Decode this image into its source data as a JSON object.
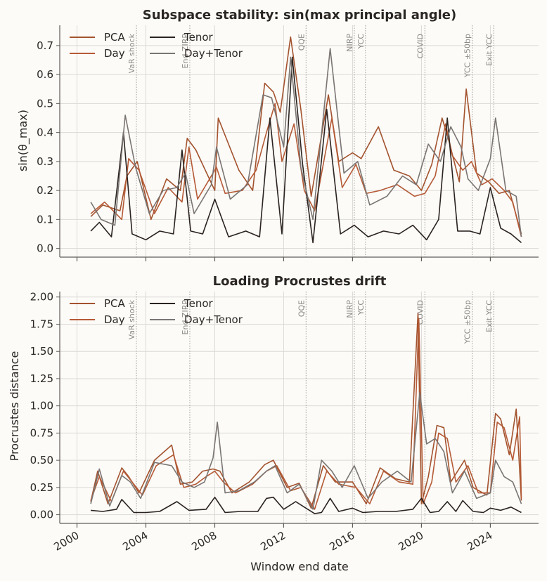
{
  "colors": {
    "background": "#fcfbf8",
    "grid": "#dcdad6",
    "axis": "#5f5b58",
    "event_line": "#a09c98",
    "pca": "#a3532e",
    "day": "#b55a36",
    "tenor": "#2a2320",
    "day_tenor": "#7a7572"
  },
  "chart_data": [
    {
      "type": "line",
      "title": "Subspace stability: sin(max principal angle)",
      "xlabel": "",
      "ylabel": "sin(θ_max)",
      "xlim": [
        1999.0,
        2026.8
      ],
      "ylim": [
        -0.03,
        0.77
      ],
      "yticks": [
        0.0,
        0.1,
        0.2,
        0.3,
        0.4,
        0.5,
        0.6,
        0.7
      ],
      "ytick_labels": [
        "0.0",
        "0.1",
        "0.2",
        "0.3",
        "0.4",
        "0.5",
        "0.6",
        "0.7"
      ],
      "xticks": [
        2000,
        2004,
        2008,
        2012,
        2016,
        2020,
        2024
      ],
      "xtick_labels_visible": false,
      "grid": true,
      "legend": {
        "placement": "top-left",
        "ncol": 2,
        "entries": [
          "PCA",
          "Day",
          "Tenor",
          "Day+Tenor"
        ]
      },
      "events": [
        {
          "x": 2003.45,
          "label": "VaR shock"
        },
        {
          "x": 2006.55,
          "label": "End ZIRP"
        },
        {
          "x": 2013.3,
          "label": "QQE"
        },
        {
          "x": 2016.1,
          "label": "NIRP"
        },
        {
          "x": 2016.75,
          "label": "YCC"
        },
        {
          "x": 2020.2,
          "label": "COVID"
        },
        {
          "x": 2022.95,
          "label": "YCC ±50bp"
        },
        {
          "x": 2024.2,
          "label": "Exit YCC"
        }
      ],
      "series": [
        {
          "name": "PCA",
          "key": "pca",
          "x": [
            2000.8,
            2001.5,
            2002.5,
            2002.9,
            2003.5,
            2004.3,
            2005.2,
            2006.0,
            2006.4,
            2006.9,
            2008.0,
            2008.2,
            2009.4,
            2010.2,
            2010.9,
            2011.4,
            2011.8,
            2012.4,
            2013.0,
            2013.6,
            2014.6,
            2015.2,
            2016.0,
            2016.5,
            2017.5,
            2018.4,
            2019.3,
            2020.0,
            2020.6,
            2021.2,
            2021.6,
            2022.2,
            2022.6,
            2023.2,
            2023.9,
            2024.5,
            2025.1,
            2025.8
          ],
          "y": [
            0.11,
            0.15,
            0.13,
            0.25,
            0.3,
            0.1,
            0.24,
            0.2,
            0.38,
            0.34,
            0.2,
            0.45,
            0.27,
            0.2,
            0.57,
            0.54,
            0.47,
            0.73,
            0.48,
            0.18,
            0.53,
            0.3,
            0.33,
            0.31,
            0.42,
            0.27,
            0.25,
            0.2,
            0.29,
            0.45,
            0.37,
            0.23,
            0.55,
            0.26,
            0.23,
            0.19,
            0.2,
            0.05
          ]
        },
        {
          "name": "Day",
          "key": "day",
          "x": [
            2000.8,
            2001.6,
            2002.6,
            2003.0,
            2003.6,
            2004.5,
            2005.3,
            2006.1,
            2006.5,
            2007.0,
            2008.1,
            2008.6,
            2009.6,
            2010.4,
            2011.0,
            2011.5,
            2011.9,
            2012.6,
            2013.2,
            2013.8,
            2014.8,
            2015.4,
            2016.2,
            2016.8,
            2017.6,
            2018.6,
            2019.6,
            2020.2,
            2020.8,
            2021.4,
            2021.8,
            2022.4,
            2022.9,
            2023.5,
            2024.1,
            2024.8,
            2025.3,
            2025.8
          ],
          "y": [
            0.12,
            0.16,
            0.1,
            0.31,
            0.27,
            0.12,
            0.21,
            0.16,
            0.35,
            0.17,
            0.28,
            0.19,
            0.2,
            0.27,
            0.4,
            0.5,
            0.3,
            0.43,
            0.2,
            0.13,
            0.45,
            0.21,
            0.29,
            0.19,
            0.2,
            0.22,
            0.18,
            0.19,
            0.25,
            0.43,
            0.32,
            0.27,
            0.3,
            0.22,
            0.24,
            0.2,
            0.16,
            0.04
          ]
        },
        {
          "name": "Tenor",
          "key": "tenor",
          "x": [
            2000.8,
            2001.3,
            2002.0,
            2002.7,
            2003.2,
            2004.0,
            2004.8,
            2005.6,
            2006.1,
            2006.6,
            2007.3,
            2008.0,
            2008.8,
            2009.8,
            2010.6,
            2011.2,
            2011.9,
            2012.5,
            2013.1,
            2013.7,
            2014.5,
            2015.3,
            2016.1,
            2016.9,
            2017.8,
            2018.7,
            2019.5,
            2020.3,
            2021.0,
            2021.5,
            2022.1,
            2022.8,
            2023.4,
            2024.0,
            2024.6,
            2025.2,
            2025.8
          ],
          "y": [
            0.06,
            0.09,
            0.04,
            0.4,
            0.05,
            0.03,
            0.06,
            0.05,
            0.34,
            0.06,
            0.05,
            0.17,
            0.04,
            0.06,
            0.04,
            0.45,
            0.05,
            0.66,
            0.29,
            0.02,
            0.48,
            0.05,
            0.08,
            0.04,
            0.06,
            0.05,
            0.08,
            0.03,
            0.1,
            0.45,
            0.06,
            0.06,
            0.05,
            0.21,
            0.07,
            0.05,
            0.02
          ]
        },
        {
          "name": "Day+Tenor",
          "key": "day_tenor",
          "x": [
            2000.8,
            2001.4,
            2002.2,
            2002.8,
            2003.4,
            2004.2,
            2005.0,
            2005.8,
            2006.3,
            2006.8,
            2007.8,
            2008.1,
            2008.9,
            2009.9,
            2010.8,
            2011.3,
            2012.0,
            2012.4,
            2013.0,
            2013.7,
            2014.7,
            2015.5,
            2016.3,
            2017.0,
            2018.0,
            2018.9,
            2019.7,
            2020.4,
            2021.1,
            2021.7,
            2022.3,
            2022.7,
            2023.3,
            2024.0,
            2024.3,
            2024.9,
            2025.5,
            2025.8
          ],
          "y": [
            0.16,
            0.1,
            0.08,
            0.46,
            0.28,
            0.12,
            0.2,
            0.21,
            0.26,
            0.12,
            0.22,
            0.35,
            0.17,
            0.22,
            0.53,
            0.52,
            0.35,
            0.66,
            0.28,
            0.1,
            0.69,
            0.26,
            0.3,
            0.15,
            0.18,
            0.25,
            0.22,
            0.36,
            0.3,
            0.42,
            0.35,
            0.24,
            0.2,
            0.31,
            0.45,
            0.2,
            0.18,
            0.04
          ]
        }
      ]
    },
    {
      "type": "line",
      "title": "Loading Procrustes drift",
      "xlabel": "Window end date",
      "ylabel": "Procrustes distance",
      "xlim": [
        1999.0,
        2026.8
      ],
      "ylim": [
        -0.08,
        2.05
      ],
      "yticks": [
        0.0,
        0.25,
        0.5,
        0.75,
        1.0,
        1.25,
        1.5,
        1.75,
        2.0
      ],
      "ytick_labels": [
        "0.00",
        "0.25",
        "0.50",
        "0.75",
        "1.00",
        "1.25",
        "1.50",
        "1.75",
        "2.00"
      ],
      "xticks": [
        2000,
        2004,
        2008,
        2012,
        2016,
        2020,
        2024
      ],
      "xtick_labels": [
        "2000",
        "2004",
        "2008",
        "2012",
        "2016",
        "2020",
        "2024"
      ],
      "grid": true,
      "legend": {
        "placement": "top-left",
        "ncol": 2,
        "entries": [
          "PCA",
          "Day",
          "Tenor",
          "Day+Tenor"
        ]
      },
      "events": [
        {
          "x": 2003.45,
          "label": "VaR shock"
        },
        {
          "x": 2006.55,
          "label": "End ZIRP"
        },
        {
          "x": 2013.3,
          "label": "QQE"
        },
        {
          "x": 2016.1,
          "label": "NIRP"
        },
        {
          "x": 2016.75,
          "label": "YCC"
        },
        {
          "x": 2020.2,
          "label": "COVID"
        },
        {
          "x": 2022.95,
          "label": "YCC ±50bp"
        },
        {
          "x": 2024.2,
          "label": "Exit YCC"
        }
      ],
      "series": [
        {
          "name": "PCA",
          "key": "pca",
          "x": [
            2000.8,
            2001.2,
            2001.8,
            2002.6,
            2003.0,
            2003.6,
            2004.5,
            2005.5,
            2006.0,
            2006.7,
            2007.3,
            2007.9,
            2008.3,
            2009.0,
            2010.0,
            2010.9,
            2011.4,
            2012.2,
            2012.9,
            2013.6,
            2014.3,
            2015.0,
            2016.0,
            2016.8,
            2017.6,
            2018.5,
            2019.3,
            2019.8,
            2020.0,
            2020.4,
            2020.9,
            2021.3,
            2021.7,
            2022.5,
            2023.0,
            2023.8,
            2024.3,
            2024.6,
            2025.1,
            2025.5,
            2025.8
          ],
          "y": [
            0.12,
            0.4,
            0.1,
            0.43,
            0.35,
            0.2,
            0.5,
            0.64,
            0.28,
            0.3,
            0.4,
            0.42,
            0.4,
            0.2,
            0.3,
            0.46,
            0.5,
            0.25,
            0.29,
            0.06,
            0.45,
            0.3,
            0.3,
            0.1,
            0.43,
            0.33,
            0.3,
            1.85,
            0.1,
            0.35,
            0.82,
            0.8,
            0.3,
            0.5,
            0.25,
            0.18,
            0.93,
            0.88,
            0.55,
            0.97,
            0.13
          ]
        },
        {
          "name": "Day",
          "key": "day",
          "x": [
            2000.8,
            2001.3,
            2002.0,
            2002.7,
            2003.2,
            2003.8,
            2004.6,
            2005.6,
            2006.2,
            2006.9,
            2007.5,
            2008.0,
            2008.5,
            2009.2,
            2010.2,
            2011.0,
            2011.6,
            2012.4,
            2013.0,
            2013.8,
            2014.5,
            2015.2,
            2016.2,
            2017.0,
            2017.8,
            2018.7,
            2019.5,
            2019.85,
            2020.1,
            2020.6,
            2021.0,
            2021.5,
            2022.0,
            2022.7,
            2023.3,
            2024.0,
            2024.4,
            2024.8,
            2025.3,
            2025.7,
            2025.8
          ],
          "y": [
            0.13,
            0.35,
            0.12,
            0.4,
            0.3,
            0.18,
            0.45,
            0.55,
            0.25,
            0.28,
            0.35,
            0.4,
            0.3,
            0.2,
            0.28,
            0.4,
            0.45,
            0.22,
            0.25,
            0.05,
            0.4,
            0.28,
            0.25,
            0.1,
            0.4,
            0.3,
            0.28,
            1.8,
            0.1,
            0.3,
            0.75,
            0.7,
            0.3,
            0.45,
            0.2,
            0.2,
            0.85,
            0.8,
            0.5,
            0.9,
            0.15
          ]
        },
        {
          "name": "Tenor",
          "key": "tenor",
          "x": [
            2000.8,
            2001.5,
            2002.3,
            2002.6,
            2003.3,
            2004.0,
            2004.8,
            2005.8,
            2006.5,
            2007.5,
            2008.0,
            2008.6,
            2009.5,
            2010.5,
            2011.0,
            2011.4,
            2012.0,
            2012.7,
            2013.2,
            2013.8,
            2014.2,
            2014.7,
            2015.2,
            2016.0,
            2016.6,
            2017.5,
            2018.5,
            2019.5,
            2020.0,
            2020.5,
            2021.0,
            2021.5,
            2022.0,
            2022.4,
            2023.0,
            2023.6,
            2024.0,
            2024.6,
            2025.2,
            2025.8
          ],
          "y": [
            0.04,
            0.03,
            0.05,
            0.14,
            0.02,
            0.02,
            0.03,
            0.12,
            0.04,
            0.05,
            0.16,
            0.02,
            0.03,
            0.03,
            0.15,
            0.16,
            0.05,
            0.12,
            0.07,
            0.01,
            0.02,
            0.15,
            0.03,
            0.06,
            0.02,
            0.03,
            0.03,
            0.05,
            0.15,
            0.02,
            0.03,
            0.12,
            0.03,
            0.13,
            0.03,
            0.02,
            0.06,
            0.04,
            0.07,
            0.02
          ]
        },
        {
          "name": "Day+Tenor",
          "key": "day_tenor",
          "x": [
            2000.8,
            2001.3,
            2001.9,
            2002.6,
            2003.1,
            2003.7,
            2004.5,
            2005.5,
            2006.1,
            2006.8,
            2007.4,
            2007.9,
            2008.15,
            2008.6,
            2009.4,
            2010.3,
            2011.0,
            2011.5,
            2012.2,
            2012.9,
            2013.7,
            2014.2,
            2014.8,
            2015.4,
            2016.1,
            2016.9,
            2017.7,
            2018.6,
            2019.4,
            2019.9,
            2020.3,
            2020.8,
            2021.3,
            2021.8,
            2022.5,
            2023.2,
            2024.0,
            2024.3,
            2024.8,
            2025.3,
            2025.8
          ],
          "y": [
            0.1,
            0.42,
            0.08,
            0.36,
            0.3,
            0.15,
            0.48,
            0.45,
            0.3,
            0.25,
            0.3,
            0.52,
            0.85,
            0.2,
            0.22,
            0.3,
            0.4,
            0.45,
            0.2,
            0.28,
            0.05,
            0.5,
            0.4,
            0.25,
            0.45,
            0.15,
            0.3,
            0.4,
            0.3,
            1.12,
            0.65,
            0.7,
            0.58,
            0.2,
            0.4,
            0.15,
            0.2,
            0.5,
            0.35,
            0.3,
            0.1
          ]
        }
      ]
    }
  ]
}
